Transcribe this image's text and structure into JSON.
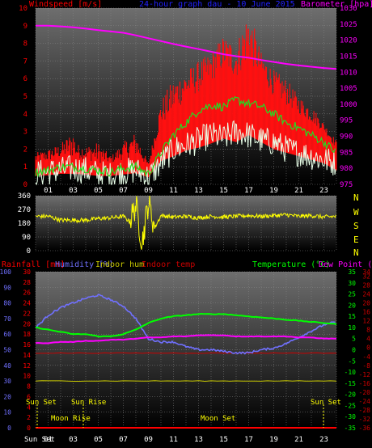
{
  "colors": {
    "background": "#000000",
    "plot_top": "#6a6a6a",
    "plot_bottom": "#000000",
    "grid": "#8a8a8a",
    "wind_avg": "#ff0000",
    "wind_gust": "#ff1010",
    "wind_green": "#22dd22",
    "wind_white": "#e8ffe8",
    "barometer": "#ff00ff",
    "direction": "#ffff00",
    "rain": "#ff0000",
    "humidity": "#7070ff",
    "indoor_hum": "#c8c800",
    "indoor_temp": "#cc0000",
    "temperature": "#00ff00",
    "dew_point": "#ff00ff",
    "sun": "#ffff00",
    "x_labels": "#ffffff"
  },
  "header": {
    "windspeed_label": "Windspeed [m/s]",
    "title": "24-hour graph dau - 10 June 2015",
    "barometer_label": "Barometer [hpa]"
  },
  "compass": {
    "n": "N",
    "w": "W",
    "s": "S",
    "e": "E"
  },
  "legend2": {
    "rainfall": "Rainfall [mm]",
    "humidity": "Humidity [%]",
    "indoor_hum": "Indoor hum",
    "indoor_temp": "Indoor temp",
    "temperature": "Temperature (°C)",
    "dew_point": "Dew Point (°C)"
  },
  "events": {
    "sun_set_left": "Sun Set",
    "sun_rise": "Sun Rise",
    "moon_rise": "Moon Rise",
    "moon_set": "Moon Set",
    "sun_set_right": "Sun Set",
    "bottom_sun_set": "Sun Set"
  },
  "chart_data": [
    {
      "type": "line",
      "x_ticks": [
        "01",
        "03",
        "05",
        "07",
        "09",
        "11",
        "13",
        "15",
        "17",
        "19",
        "21",
        "23"
      ],
      "xlim": [
        0,
        24
      ],
      "left_axis": {
        "ylim": [
          0,
          10
        ],
        "ticks": [
          "0",
          "1",
          "2",
          "3",
          "4",
          "5",
          "6",
          "7",
          "8",
          "9",
          "10"
        ]
      },
      "right_axis": {
        "ylim": [
          975,
          1030
        ],
        "ticks": [
          "975",
          "980",
          "985",
          "990",
          "995",
          "1000",
          "1005",
          "1010",
          "1015",
          "1020",
          "1025",
          "1030"
        ]
      },
      "series": [
        {
          "key": "barometer",
          "axis": "right",
          "x": [
            0,
            1,
            2,
            3,
            4,
            5,
            6,
            7,
            8,
            9,
            10,
            11,
            12,
            13,
            14,
            15,
            16,
            17,
            18,
            19,
            20,
            21,
            22,
            23,
            24
          ],
          "values": [
            1024.5,
            1024.5,
            1024.3,
            1024,
            1023.6,
            1023.1,
            1022.7,
            1022.3,
            1021.5,
            1020.6,
            1019.7,
            1018.8,
            1018,
            1017.2,
            1016.4,
            1015.6,
            1015,
            1014.5,
            1013.8,
            1013.2,
            1012.6,
            1012.1,
            1011.7,
            1011.3,
            1011
          ]
        },
        {
          "key": "wind_gust",
          "axis": "left",
          "x": [
            0,
            1,
            2,
            3,
            3.3,
            4,
            5,
            6,
            7,
            8,
            9,
            10,
            11,
            12,
            13,
            14,
            15,
            16,
            17,
            18,
            19,
            20,
            21,
            22,
            23,
            24
          ],
          "values": [
            1.8,
            2,
            2.3,
            3.1,
            2.3,
            2.2,
            2.4,
            1.6,
            2.4,
            3,
            1.2,
            4.8,
            6,
            6.5,
            7,
            7.5,
            8.5,
            8,
            10,
            7.5,
            6.5,
            6,
            5,
            4.5,
            3.5,
            2.5
          ]
        },
        {
          "key": "wind_avg",
          "axis": "left",
          "x": [
            0,
            1,
            2,
            3,
            4,
            5,
            6,
            7,
            8,
            9,
            10,
            11,
            12,
            13,
            14,
            15,
            16,
            17,
            18,
            19,
            20,
            21,
            22,
            23,
            24
          ],
          "values": [
            1.2,
            1.3,
            1.5,
            1.5,
            1.4,
            1.2,
            1.2,
            1.4,
            1.6,
            1.0,
            3.3,
            4.0,
            4.8,
            5.2,
            5.8,
            6.5,
            6.0,
            7.0,
            6.0,
            5.0,
            4.5,
            4.0,
            3.5,
            3.0,
            2.0
          ]
        },
        {
          "key": "wind_green",
          "axis": "left",
          "x": [
            0,
            1,
            2,
            3,
            4,
            5,
            6,
            7,
            8,
            9,
            10,
            11,
            12,
            13,
            14,
            15,
            16,
            17,
            18,
            19,
            20,
            21,
            22,
            23,
            24
          ],
          "values": [
            0.7,
            0.8,
            1.0,
            1.0,
            0.9,
            0.8,
            0.7,
            0.9,
            1.0,
            0.6,
            1.8,
            2.8,
            3.5,
            4.2,
            4.5,
            4.4,
            4.8,
            4.6,
            4.4,
            4.0,
            3.5,
            3.2,
            2.8,
            2.4,
            1.8
          ]
        },
        {
          "key": "wind_white",
          "axis": "left",
          "x": [
            0,
            1,
            2,
            3,
            4,
            5,
            6,
            7,
            8,
            9,
            10,
            11,
            12,
            13,
            14,
            15,
            16,
            17,
            18,
            19,
            20,
            21,
            22,
            23,
            24
          ],
          "values": [
            0.6,
            0.7,
            0.8,
            0.9,
            0.8,
            0.6,
            0.5,
            0.7,
            0.8,
            0.4,
            1.2,
            2.0,
            2.2,
            2.5,
            2.8,
            2.6,
            3.0,
            2.8,
            2.5,
            2.4,
            2.0,
            1.8,
            1.6,
            1.4,
            1.2
          ]
        }
      ]
    },
    {
      "type": "line",
      "ylim": [
        0,
        360
      ],
      "y_ticks": [
        "0",
        "90",
        "180",
        "270",
        "360"
      ],
      "series": [
        {
          "key": "direction",
          "x": [
            0,
            1,
            2,
            3,
            4,
            5,
            6,
            7,
            7.5,
            8,
            8.5,
            9,
            9.5,
            10,
            11,
            12,
            13,
            14,
            15,
            16,
            17,
            18,
            19,
            20,
            21,
            22,
            23,
            24
          ],
          "values": [
            225,
            225,
            200,
            200,
            200,
            210,
            215,
            225,
            190,
            300,
            50,
            320,
            150,
            230,
            220,
            225,
            215,
            225,
            220,
            225,
            230,
            225,
            230,
            235,
            225,
            230,
            220,
            225
          ]
        }
      ]
    },
    {
      "type": "line",
      "axes": {
        "rain": {
          "ylim": [
            0,
            30
          ],
          "ticks": [
            "0",
            "2",
            "4",
            "6",
            "8",
            "10",
            "12",
            "14",
            "16",
            "18",
            "20",
            "22",
            "24",
            "26",
            "28",
            "30"
          ]
        },
        "humidity": {
          "ylim": [
            0,
            100
          ],
          "ticks": [
            "0",
            "10",
            "20",
            "30",
            "40",
            "50",
            "60",
            "70",
            "80",
            "90",
            "100"
          ]
        },
        "temperature": {
          "ylim": [
            -35,
            35
          ],
          "ticks": [
            "-35",
            "-30",
            "-25",
            "-20",
            "-15",
            "-10",
            "-5",
            "0",
            "5",
            "10",
            "15",
            "20",
            "25",
            "30",
            "35"
          ]
        },
        "dew_point": {
          "ylim": [
            -36,
            34
          ],
          "ticks": [
            "-36",
            "-32",
            "-28",
            "-24",
            "-20",
            "-16",
            "-12",
            "-8",
            "-4",
            "0",
            "4",
            "8",
            "12",
            "16",
            "20",
            "24",
            "28",
            "32",
            "34"
          ]
        }
      },
      "series": [
        {
          "key": "humidity",
          "axis": "humidity",
          "x": [
            0,
            1,
            2,
            3,
            4,
            5,
            6,
            7,
            8,
            9,
            10,
            11,
            12,
            13,
            14,
            15,
            16,
            17,
            18,
            19,
            20,
            21,
            22,
            23,
            24
          ],
          "values": [
            64,
            72,
            77,
            80,
            83,
            85,
            82,
            78,
            70,
            57,
            55,
            55,
            52,
            50,
            50,
            49,
            48,
            48,
            50,
            51,
            54,
            58,
            62,
            66,
            68
          ]
        },
        {
          "key": "temperature",
          "axis": "temperature",
          "x": [
            0,
            1,
            2,
            3,
            4,
            5,
            6,
            7,
            8,
            9,
            10,
            11,
            12,
            13,
            14,
            15,
            16,
            17,
            18,
            19,
            20,
            21,
            22,
            23,
            24
          ],
          "values": [
            10,
            9,
            8,
            7,
            7,
            6,
            6,
            7,
            9,
            12,
            14,
            15,
            15.5,
            16,
            16,
            16,
            15.5,
            15,
            14.5,
            14,
            13.5,
            13,
            12.5,
            12,
            11.5
          ]
        },
        {
          "key": "dew_point",
          "axis": "temperature",
          "x": [
            0,
            1,
            2,
            3,
            4,
            5,
            6,
            7,
            8,
            9,
            10,
            11,
            12,
            13,
            14,
            15,
            16,
            17,
            18,
            19,
            20,
            21,
            22,
            23,
            24
          ],
          "values": [
            3,
            3,
            3.5,
            3.5,
            4,
            4,
            4.5,
            4.5,
            5,
            5.5,
            5.5,
            6,
            6,
            6.5,
            6.5,
            6.5,
            6,
            6,
            6,
            6,
            6,
            5.5,
            5.5,
            5,
            5
          ]
        },
        {
          "key": "indoor_temp",
          "axis": "temperature",
          "x": [
            0,
            24
          ],
          "values": [
            -1.5,
            -1.5
          ]
        },
        {
          "key": "indoor_hum",
          "axis": "humidity",
          "x": [
            0,
            24
          ],
          "values": [
            30,
            30
          ]
        },
        {
          "key": "rain",
          "axis": "rain",
          "x": [
            0,
            24
          ],
          "values": [
            0,
            0
          ]
        }
      ],
      "x_ticks": [
        "01",
        "03",
        "05",
        "07",
        "09",
        "11",
        "13",
        "15",
        "17",
        "19",
        "21",
        "23"
      ]
    }
  ]
}
